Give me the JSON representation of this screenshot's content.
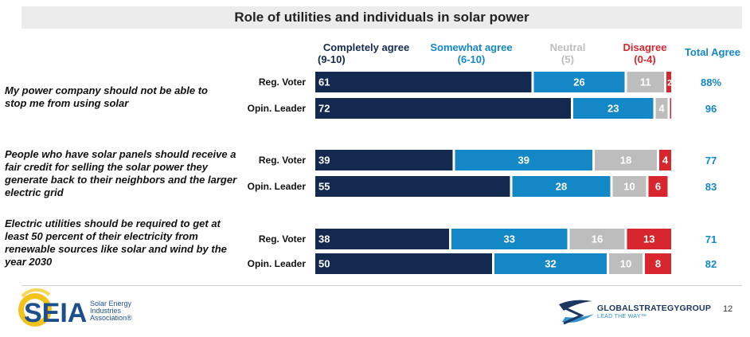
{
  "title": "Role of utilities and individuals in solar power",
  "headers": {
    "completely": {
      "line1": "Completely agree",
      "line2": "(9-10)"
    },
    "somewhat": {
      "line1": "Somewhat agree",
      "line2": "(6-10)"
    },
    "neutral": {
      "line1": "Neutral",
      "line2": "(5)"
    },
    "disagree": {
      "line1": "Disagree",
      "line2": "(0-4)"
    },
    "total": {
      "line1": "Total Agree"
    }
  },
  "colors": {
    "completely": "#14294f",
    "somewhat": "#1487c6",
    "neutral": "#bdbdbd",
    "disagree": "#d7262d",
    "total_text": "#1487c6"
  },
  "chart_data": {
    "type": "bar",
    "orientation": "horizontal-stacked",
    "series_order": [
      "Completely agree (9-10)",
      "Somewhat agree (6-10)",
      "Neutral (5)",
      "Disagree (0-4)"
    ],
    "xlim": [
      0,
      100
    ],
    "statements": [
      {
        "text": "My power company should not be able to stop me from using solar",
        "rows": [
          {
            "group": "Reg. Voter",
            "values": [
              61,
              26,
              11,
              2
            ],
            "labels": [
              "61",
              "26",
              "11",
              "2"
            ],
            "total": "88%"
          },
          {
            "group": "Opin. Leader",
            "values": [
              72,
              23,
              4,
              1
            ],
            "labels": [
              "72",
              "23",
              "4",
              ""
            ],
            "total": "96"
          }
        ]
      },
      {
        "text": "People who have solar panels should receive a fair credit for selling the solar power they generate back to their neighbors and the larger electric grid",
        "rows": [
          {
            "group": "Reg. Voter",
            "values": [
              39,
              39,
              18,
              4
            ],
            "labels": [
              "39",
              "39",
              "18",
              "4"
            ],
            "total": "77"
          },
          {
            "group": "Opin. Leader",
            "values": [
              55,
              28,
              10,
              6
            ],
            "labels": [
              "55",
              "28",
              "10",
              "6"
            ],
            "total": "83"
          }
        ]
      },
      {
        "text": "Electric utilities should be required to get at least 50 percent of their electricity from renewable sources like solar and wind by the year 2030",
        "rows": [
          {
            "group": "Reg. Voter",
            "values": [
              38,
              33,
              16,
              13
            ],
            "labels": [
              "38",
              "33",
              "16",
              "13"
            ],
            "total": "71"
          },
          {
            "group": "Opin. Leader",
            "values": [
              50,
              32,
              10,
              8
            ],
            "labels": [
              "50",
              "32",
              "10",
              "8"
            ],
            "total": "82"
          }
        ]
      }
    ]
  },
  "footer": {
    "seia_logo": "SEIA",
    "seia_line1": "Solar Energy",
    "seia_line2": "Industries",
    "seia_line3": "Association®",
    "gsg_name": "GLOBALSTRATEGYGROUP",
    "gsg_tagline": "LEAD THE WAY™",
    "page_number": "12"
  }
}
